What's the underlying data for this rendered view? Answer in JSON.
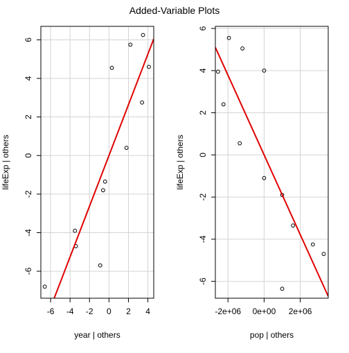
{
  "title": "Added-Variable Plots",
  "chart_data": [
    {
      "type": "scatter",
      "xlabel": "year | others",
      "ylabel": "lifeExp | others",
      "xlim": [
        -7.0,
        4.6
      ],
      "ylim": [
        -7.4,
        6.7
      ],
      "xticks": [
        -6,
        -4,
        -2,
        0,
        2,
        4
      ],
      "xtick_labels": [
        "-6",
        "-4",
        "-2",
        "0",
        "2",
        "4"
      ],
      "yticks": [
        -6,
        -4,
        -2,
        0,
        2,
        4,
        6
      ],
      "ytick_labels": [
        "-6",
        "-4",
        "-2",
        "0",
        "2",
        "4",
        "6"
      ],
      "grid": true,
      "points": [
        {
          "x": -6.6,
          "y": -6.8
        },
        {
          "x": -3.5,
          "y": -3.9
        },
        {
          "x": -3.4,
          "y": -4.7
        },
        {
          "x": -0.9,
          "y": -5.7
        },
        {
          "x": -0.6,
          "y": -1.8
        },
        {
          "x": -0.4,
          "y": -1.35
        },
        {
          "x": 0.3,
          "y": 4.55
        },
        {
          "x": 1.8,
          "y": 0.4
        },
        {
          "x": 2.2,
          "y": 5.75
        },
        {
          "x": 3.4,
          "y": 2.75
        },
        {
          "x": 3.5,
          "y": 6.25
        },
        {
          "x": 4.1,
          "y": 4.6
        }
      ],
      "fit_line": {
        "slope": 1.315,
        "intercept": 0.0,
        "color": "#e00000"
      }
    },
    {
      "type": "scatter",
      "xlabel": "pop | others",
      "ylabel": "lifeExp | others",
      "xlim": [
        -2700000,
        3550000
      ],
      "ylim": [
        -6.8,
        6.1
      ],
      "xticks": [
        -2000000,
        0,
        2000000
      ],
      "xtick_labels": [
        "-2e+06",
        "0e+00",
        "2e+06"
      ],
      "yticks": [
        -6,
        -4,
        -2,
        0,
        2,
        4,
        6
      ],
      "ytick_labels": [
        "-6",
        "-4",
        "-2",
        "0",
        "2",
        "4",
        "6"
      ],
      "grid": true,
      "points": [
        {
          "x": -2550000,
          "y": 3.95
        },
        {
          "x": -2250000,
          "y": 2.4
        },
        {
          "x": -1950000,
          "y": 5.55
        },
        {
          "x": -1350000,
          "y": 0.55
        },
        {
          "x": -1200000,
          "y": 5.05
        },
        {
          "x": 0,
          "y": 4.0
        },
        {
          "x": 0,
          "y": -1.1
        },
        {
          "x": 1000000,
          "y": -1.9
        },
        {
          "x": 1000000,
          "y": -6.35
        },
        {
          "x": 1600000,
          "y": -3.35
        },
        {
          "x": 2700000,
          "y": -4.25
        },
        {
          "x": 3300000,
          "y": -4.7
        }
      ],
      "fit_line": {
        "slope": -1.89e-06,
        "intercept": 0.0,
        "color": "#e00000"
      }
    }
  ]
}
